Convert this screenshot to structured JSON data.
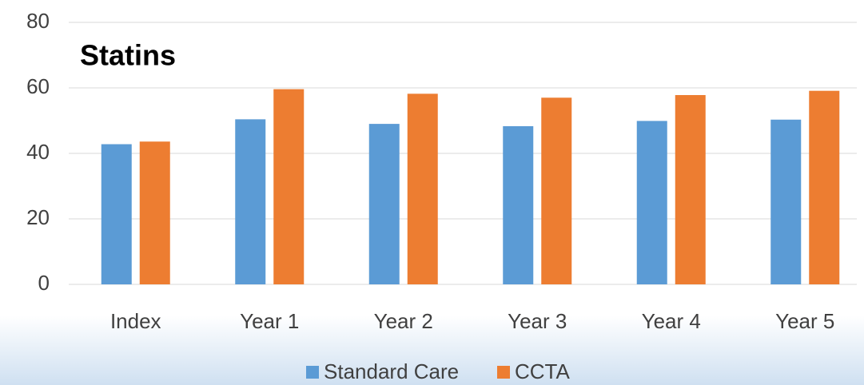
{
  "chart_data": {
    "type": "bar",
    "title": "Statins",
    "categories": [
      "Index",
      "Year 1",
      "Year 2",
      "Year 3",
      "Year 4",
      "Year 5"
    ],
    "series": [
      {
        "name": "Standard Care",
        "color": "#5b9bd5",
        "values": [
          42.8,
          50.4,
          49.0,
          48.3,
          49.9,
          50.3
        ]
      },
      {
        "name": "CCTA",
        "color": "#ed7d31",
        "values": [
          43.6,
          59.6,
          58.2,
          57.0,
          57.8,
          59.1
        ]
      }
    ],
    "ylim": [
      0,
      80
    ],
    "yticks": [
      0,
      20,
      40,
      60,
      80
    ],
    "grid": true
  }
}
